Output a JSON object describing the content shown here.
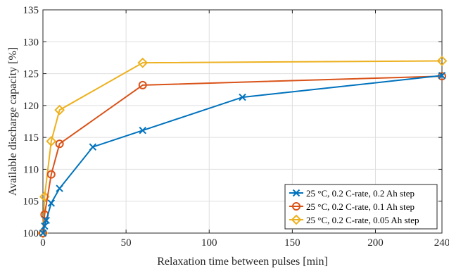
{
  "chart_data": {
    "type": "line",
    "xlabel": "Relaxation time between pulses [min]",
    "ylabel": "Available discharge capacity [%]",
    "xlim": [
      0,
      240
    ],
    "ylim": [
      100,
      135
    ],
    "xticks": [
      0,
      50,
      100,
      150,
      200,
      240
    ],
    "yticks": [
      100,
      105,
      110,
      115,
      120,
      125,
      130,
      135
    ],
    "grid": true,
    "legend_position": "bottom-right",
    "series": [
      {
        "name": "25 °C, 0.2 C-rate, 0.2 Ah step",
        "color": "#0072BD",
        "marker": "x",
        "x": [
          0,
          1,
          2,
          5,
          10,
          30,
          60,
          120,
          240
        ],
        "y": [
          100.0,
          101.1,
          102.0,
          104.7,
          107.0,
          113.5,
          116.1,
          121.3,
          124.7
        ]
      },
      {
        "name": "25 °C, 0.2 C-rate, 0.1 Ah step",
        "color": "#D95319",
        "marker": "o",
        "x": [
          0,
          1,
          5,
          10,
          60,
          240
        ],
        "y": [
          100.0,
          102.9,
          109.2,
          114.0,
          123.2,
          124.6
        ]
      },
      {
        "name": "25 °C, 0.2 C-rate, 0.05 Ah step",
        "color": "#EDB120",
        "marker": "d",
        "x": [
          0,
          1,
          5,
          10,
          60,
          240
        ],
        "y": [
          100.0,
          105.7,
          114.4,
          119.3,
          126.7,
          127.0
        ]
      }
    ]
  }
}
